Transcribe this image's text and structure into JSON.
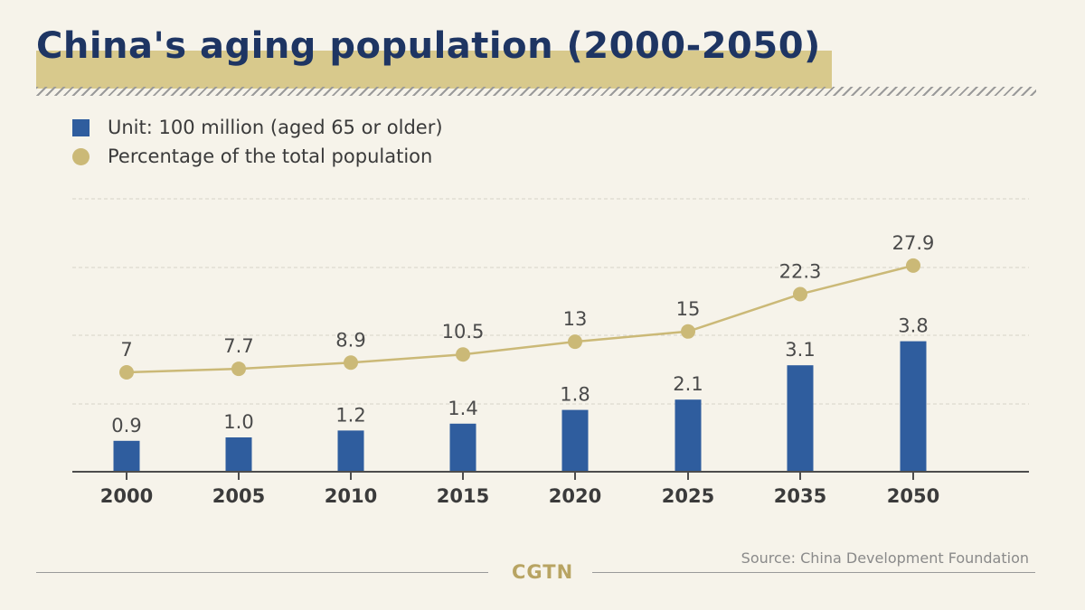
{
  "title": "China's aging population (2000-2050)",
  "legend": {
    "bar_label": "Unit: 100 million (aged 65 or older)",
    "line_label": "Percentage of the total population"
  },
  "source": "Source: China Development Foundation",
  "brand": "CGTN",
  "colors": {
    "bar": "#2f5d9e",
    "line": "#cbb977",
    "title": "#1e3563",
    "highlight": "#d8c98c"
  },
  "chart_data": {
    "type": "bar",
    "categories": [
      "2000",
      "2005",
      "2010",
      "2015",
      "2020",
      "2025",
      "2035",
      "2050"
    ],
    "series": [
      {
        "name": "Unit: 100 million (aged 65 or older)",
        "type": "bar",
        "values": [
          0.9,
          1.0,
          1.2,
          1.4,
          1.8,
          2.1,
          3.1,
          3.8
        ],
        "labels": [
          "0.9",
          "1.0",
          "1.2",
          "1.4",
          "1.8",
          "2.1",
          "3.1",
          "3.8"
        ]
      },
      {
        "name": "Percentage of the total population",
        "type": "line",
        "values": [
          7,
          7.7,
          8.9,
          10.5,
          13,
          15,
          22.3,
          27.9
        ],
        "labels": [
          "7",
          "7.7",
          "8.9",
          "10.5",
          "13",
          "15",
          "22.3",
          "27.9"
        ]
      }
    ],
    "grid": true,
    "legend_position": "top-left"
  }
}
